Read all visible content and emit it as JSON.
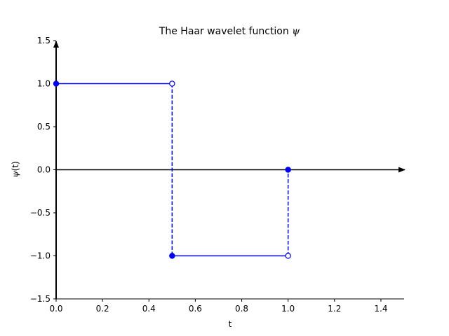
{
  "chart_data": {
    "type": "line",
    "title": "The Haar wavelet function",
    "title_symbol": "ψ",
    "xlabel": "t",
    "ylabel_symbol": "ψ",
    "ylabel_arg": "(t)",
    "xlim": [
      0,
      1.5
    ],
    "ylim": [
      -1.5,
      1.5
    ],
    "x_ticks": [
      "0.0",
      "0.2",
      "0.4",
      "0.6",
      "0.8",
      "1.0",
      "1.2",
      "1.4"
    ],
    "y_ticks": [
      "−1.5",
      "−1.0",
      "−0.5",
      "0.0",
      "0.5",
      "1.0",
      "1.5"
    ],
    "x_tick_values": [
      0,
      0.2,
      0.4,
      0.6,
      0.8,
      1.0,
      1.2,
      1.4
    ],
    "y_tick_values": [
      -1.5,
      -1.0,
      -0.5,
      0,
      0.5,
      1.0,
      1.5
    ],
    "grid": false,
    "series_color": "#0000ff",
    "axis_color": "#000000",
    "segments": [
      {
        "x": [
          0,
          0.5
        ],
        "y": [
          1,
          1
        ],
        "style": "solid"
      },
      {
        "x": [
          0.5,
          1.0
        ],
        "y": [
          -1,
          -1
        ],
        "style": "solid"
      },
      {
        "x": [
          0.5,
          0.5
        ],
        "y": [
          1,
          -1
        ],
        "style": "dashed"
      },
      {
        "x": [
          1.0,
          1.0
        ],
        "y": [
          -1,
          0
        ],
        "style": "dashed"
      }
    ],
    "points": [
      {
        "x": 0,
        "y": 1,
        "filled": true
      },
      {
        "x": 0.5,
        "y": 1,
        "filled": false
      },
      {
        "x": 0.5,
        "y": -1,
        "filled": true
      },
      {
        "x": 1.0,
        "y": -1,
        "filled": false
      },
      {
        "x": 1.0,
        "y": 0,
        "filled": true
      }
    ]
  }
}
